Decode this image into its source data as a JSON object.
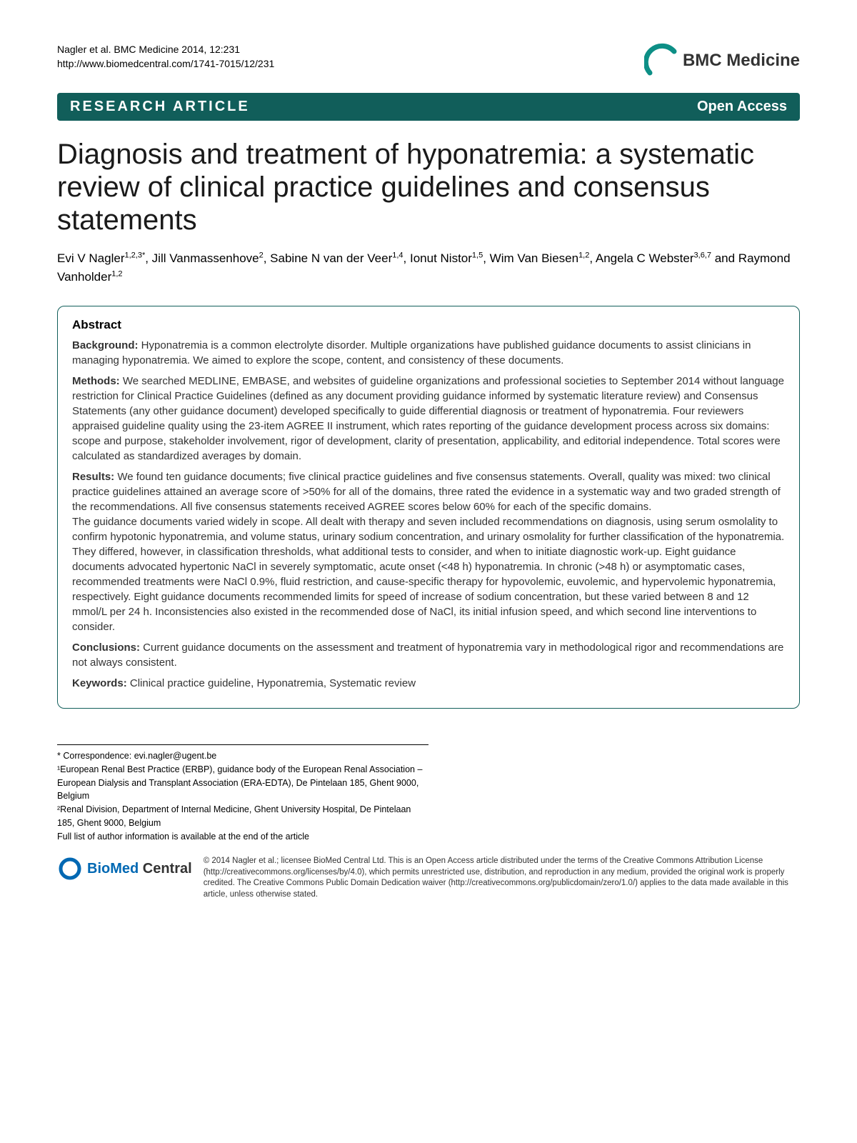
{
  "header": {
    "citation_line1": "Nagler et al. BMC Medicine 2014, 12:231",
    "citation_line2": "http://www.biomedcentral.com/1741-7015/12/231",
    "journal_prefix": "BMC",
    "journal_name": "Medicine"
  },
  "banner": {
    "left": "RESEARCH ARTICLE",
    "right": "Open Access",
    "bg_color": "#115e5a",
    "text_color": "#ffffff"
  },
  "title": "Diagnosis and treatment of hyponatremia: a systematic review of clinical practice guidelines and consensus statements",
  "authors_html": "Evi V Nagler<sup>1,2,3*</sup>, Jill Vanmassenhove<sup>2</sup>, Sabine N van der Veer<sup>1,4</sup>, Ionut Nistor<sup>1,5</sup>, Wim Van Biesen<sup>1,2</sup>, Angela C Webster<sup>3,6,7</sup> and Raymond Vanholder<sup>1,2</sup>",
  "abstract": {
    "heading": "Abstract",
    "sections": [
      {
        "label": "Background:",
        "text": " Hyponatremia is a common electrolyte disorder. Multiple organizations have published guidance documents to assist clinicians in managing hyponatremia. We aimed to explore the scope, content, and consistency of these documents."
      },
      {
        "label": "Methods:",
        "text": " We searched MEDLINE, EMBASE, and websites of guideline organizations and professional societies to September 2014 without language restriction for Clinical Practice Guidelines (defined as any document providing guidance informed by systematic literature review) and Consensus Statements (any other guidance document) developed specifically to guide differential diagnosis or treatment of hyponatremia. Four reviewers appraised guideline quality using the 23-item AGREE II instrument, which rates reporting of the guidance development process across six domains: scope and purpose, stakeholder involvement, rigor of development, clarity of presentation, applicability, and editorial independence. Total scores were calculated as standardized averages by domain."
      },
      {
        "label": "Results:",
        "text": " We found ten guidance documents; five clinical practice guidelines and five consensus statements. Overall, quality was mixed: two clinical practice guidelines attained an average score of >50% for all of the domains, three rated the evidence in a systematic way and two graded strength of the recommendations. All five consensus statements received AGREE scores below 60% for each of the specific domains.\nThe guidance documents varied widely in scope. All dealt with therapy and seven included recommendations on diagnosis, using serum osmolality to confirm hypotonic hyponatremia, and volume status, urinary sodium concentration, and urinary osmolality for further classification of the hyponatremia. They differed, however, in classification thresholds, what additional tests to consider, and when to initiate diagnostic work-up. Eight guidance documents advocated hypertonic NaCl in severely symptomatic, acute onset (<48 h) hyponatremia. In chronic (>48 h) or asymptomatic cases, recommended treatments were NaCl 0.9%, fluid restriction, and cause-specific therapy for hypovolemic, euvolemic, and hypervolemic hyponatremia, respectively. Eight guidance documents recommended limits for speed of increase of sodium concentration, but these varied between 8 and 12 mmol/L per 24 h. Inconsistencies also existed in the recommended dose of NaCl, its initial infusion speed, and which second line interventions to consider."
      },
      {
        "label": "Conclusions:",
        "text": " Current guidance documents on the assessment and treatment of hyponatremia vary in methodological rigor and recommendations are not always consistent."
      },
      {
        "label": "Keywords:",
        "text": " Clinical practice guideline, Hyponatremia, Systematic review"
      }
    ]
  },
  "footnotes": {
    "correspondence": "* Correspondence: evi.nagler@ugent.be",
    "aff1": "¹European Renal Best Practice (ERBP), guidance body of the European Renal Association – European Dialysis and Transplant Association (ERA-EDTA), De Pintelaan 185, Ghent 9000, Belgium",
    "aff2": "²Renal Division, Department of Internal Medicine, Ghent University Hospital, De Pintelaan 185, Ghent 9000, Belgium",
    "full_list": "Full list of author information is available at the end of the article"
  },
  "footer": {
    "publisher_bio": "BioMed",
    "publisher_central": " Central",
    "license": "© 2014 Nagler et al.; licensee BioMed Central Ltd. This is an Open Access article distributed under the terms of the Creative Commons Attribution License (http://creativecommons.org/licenses/by/4.0), which permits unrestricted use, distribution, and reproduction in any medium, provided the original work is properly credited. The Creative Commons Public Domain Dedication waiver (http://creativecommons.org/publicdomain/zero/1.0/) applies to the data made available in this article, unless otherwise stated."
  },
  "colors": {
    "teal": "#115e5a",
    "logo_arc": "#0d8f86",
    "bmc_blue": "#0068b3"
  }
}
